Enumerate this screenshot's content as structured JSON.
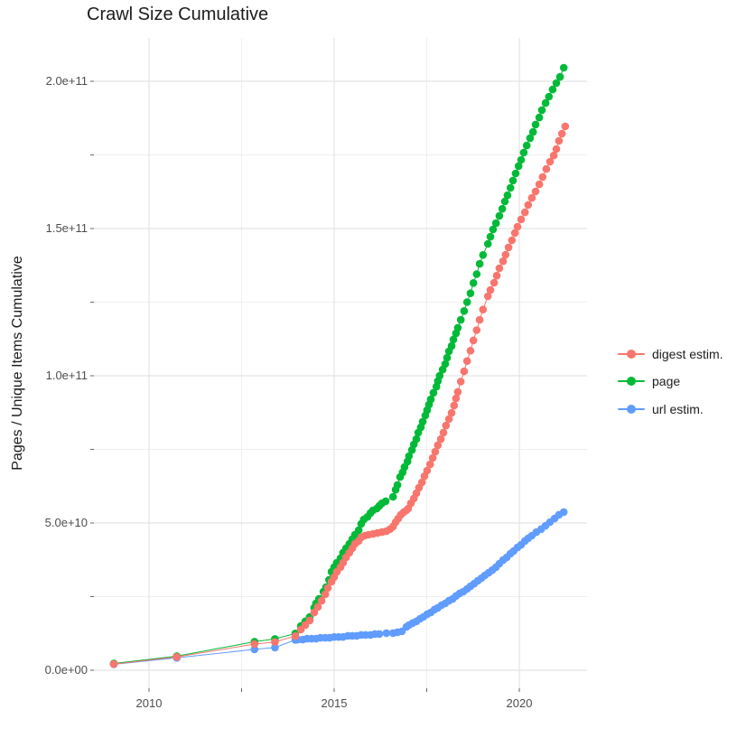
{
  "title": "Crawl Size Cumulative",
  "axes": {
    "y_title": "Pages / Unique Items Cumulative",
    "y_ticks": [
      "2.0e+11",
      "1.5e+11",
      "1.0e+11",
      "5.0e+10",
      "0.0e+00"
    ],
    "x_ticks": [
      "2010",
      "2015",
      "2020"
    ]
  },
  "legend": {
    "items": [
      {
        "label": "digest estim.",
        "color": "#F8766D"
      },
      {
        "label": "page",
        "color": "#00BA38"
      },
      {
        "label": "url estim.",
        "color": "#619CFF"
      }
    ]
  },
  "chart_data": {
    "type": "line",
    "title": "Crawl Size Cumulative",
    "xlabel": "",
    "ylabel": "Pages / Unique Items Cumulative",
    "value_unit": "billions of items (1e9)",
    "grid": "on",
    "legend_position": "right",
    "x_axis": {
      "ticks": [
        2010,
        2015,
        2020
      ],
      "minor_ticks": [
        2012.5,
        2017.5
      ],
      "range": [
        2008.5,
        2021.85
      ]
    },
    "y_axis": {
      "tick_labels": [
        "0.0e+00",
        "5.0e+10",
        "1.0e+11",
        "1.5e+11",
        "2.0e+11"
      ],
      "tick_values_billions": [
        0,
        50,
        100,
        150,
        200
      ],
      "minor_values_billions": [
        25,
        75,
        125,
        175
      ],
      "range_billions": [
        -6,
        215
      ]
    },
    "series": [
      {
        "name": "digest estim.",
        "color": "#F8766D",
        "points": [
          [
            2009.05,
            2.1
          ],
          [
            2010.75,
            4.5
          ],
          [
            2012.85,
            8.9
          ],
          [
            2013.4,
            9.6
          ],
          [
            2013.95,
            11.6
          ],
          [
            2014.1,
            13.8
          ],
          [
            2014.22,
            15.3
          ],
          [
            2014.34,
            16.9
          ],
          [
            2014.46,
            19.6
          ],
          [
            2014.56,
            21.5
          ],
          [
            2014.66,
            23.6
          ],
          [
            2014.76,
            25.8
          ],
          [
            2014.83,
            27.9
          ],
          [
            2014.93,
            30.1
          ],
          [
            2015.0,
            31.6
          ],
          [
            2015.07,
            33.4
          ],
          [
            2015.17,
            35.0
          ],
          [
            2015.24,
            36.5
          ],
          [
            2015.32,
            38.3
          ],
          [
            2015.41,
            39.9
          ],
          [
            2015.49,
            41.4
          ],
          [
            2015.56,
            42.9
          ],
          [
            2015.66,
            43.9
          ],
          [
            2015.73,
            45.1
          ],
          [
            2015.83,
            45.7
          ],
          [
            2015.93,
            46.0
          ],
          [
            2016.05,
            46.3
          ],
          [
            2016.17,
            46.6
          ],
          [
            2016.29,
            46.9
          ],
          [
            2016.41,
            47.2
          ],
          [
            2016.51,
            47.9
          ],
          [
            2016.59,
            48.8
          ],
          [
            2016.66,
            50.3
          ],
          [
            2016.73,
            51.5
          ],
          [
            2016.8,
            52.8
          ],
          [
            2016.88,
            53.7
          ],
          [
            2016.95,
            54.3
          ],
          [
            2017.0,
            54.9
          ],
          [
            2017.07,
            56.7
          ],
          [
            2017.15,
            58.3
          ],
          [
            2017.22,
            60.1
          ],
          [
            2017.29,
            62.0
          ],
          [
            2017.37,
            63.8
          ],
          [
            2017.44,
            65.9
          ],
          [
            2017.51,
            67.8
          ],
          [
            2017.59,
            69.9
          ],
          [
            2017.66,
            72.1
          ],
          [
            2017.73,
            74.2
          ],
          [
            2017.8,
            76.4
          ],
          [
            2017.88,
            78.5
          ],
          [
            2017.95,
            80.7
          ],
          [
            2018.02,
            83.1
          ],
          [
            2018.1,
            85.3
          ],
          [
            2018.17,
            87.4
          ],
          [
            2018.24,
            89.9
          ],
          [
            2018.29,
            92.3
          ],
          [
            2018.34,
            94.5
          ],
          [
            2018.42,
            98.0
          ],
          [
            2018.51,
            101.5
          ],
          [
            2018.59,
            105.0
          ],
          [
            2018.68,
            108.5
          ],
          [
            2018.76,
            112.0
          ],
          [
            2018.85,
            115.5
          ],
          [
            2018.93,
            119.0
          ],
          [
            2019.02,
            122.5
          ],
          [
            2019.15,
            127.0
          ],
          [
            2019.22,
            129.1
          ],
          [
            2019.32,
            131.6
          ],
          [
            2019.39,
            134.0
          ],
          [
            2019.46,
            136.5
          ],
          [
            2019.56,
            138.9
          ],
          [
            2019.63,
            141.1
          ],
          [
            2019.71,
            143.6
          ],
          [
            2019.8,
            146.0
          ],
          [
            2019.88,
            148.5
          ],
          [
            2019.95,
            150.6
          ],
          [
            2020.05,
            153.1
          ],
          [
            2020.15,
            155.5
          ],
          [
            2020.24,
            158.0
          ],
          [
            2020.34,
            160.4
          ],
          [
            2020.44,
            162.6
          ],
          [
            2020.54,
            165.0
          ],
          [
            2020.63,
            167.5
          ],
          [
            2020.73,
            170.2
          ],
          [
            2020.83,
            172.7
          ],
          [
            2020.93,
            174.8
          ],
          [
            2021.0,
            177.0
          ],
          [
            2021.07,
            179.8
          ],
          [
            2021.15,
            182.2
          ],
          [
            2021.24,
            184.7
          ]
        ]
      },
      {
        "name": "page",
        "color": "#00BA38",
        "points": [
          [
            2009.05,
            2.3
          ],
          [
            2010.75,
            4.8
          ],
          [
            2012.85,
            9.7
          ],
          [
            2013.4,
            10.6
          ],
          [
            2013.95,
            12.5
          ],
          [
            2014.1,
            15.0
          ],
          [
            2014.22,
            16.6
          ],
          [
            2014.34,
            18.1
          ],
          [
            2014.46,
            21.2
          ],
          [
            2014.51,
            22.7
          ],
          [
            2014.59,
            24.2
          ],
          [
            2014.71,
            26.7
          ],
          [
            2014.78,
            28.2
          ],
          [
            2014.86,
            30.7
          ],
          [
            2014.93,
            33.4
          ],
          [
            2015.0,
            35.0
          ],
          [
            2015.07,
            36.5
          ],
          [
            2015.17,
            38.0
          ],
          [
            2015.24,
            39.9
          ],
          [
            2015.32,
            41.4
          ],
          [
            2015.41,
            42.9
          ],
          [
            2015.49,
            44.5
          ],
          [
            2015.56,
            46.0
          ],
          [
            2015.66,
            47.5
          ],
          [
            2015.73,
            49.7
          ],
          [
            2015.8,
            51.2
          ],
          [
            2015.9,
            52.1
          ],
          [
            2015.98,
            53.4
          ],
          [
            2016.05,
            54.3
          ],
          [
            2016.15,
            54.9
          ],
          [
            2016.22,
            55.8
          ],
          [
            2016.29,
            56.7
          ],
          [
            2016.39,
            57.4
          ],
          [
            2016.59,
            58.9
          ],
          [
            2016.66,
            61.3
          ],
          [
            2016.71,
            62.9
          ],
          [
            2016.78,
            65.6
          ],
          [
            2016.85,
            67.2
          ],
          [
            2016.9,
            69.0
          ],
          [
            2016.98,
            70.9
          ],
          [
            2017.02,
            72.7
          ],
          [
            2017.1,
            74.8
          ],
          [
            2017.15,
            76.7
          ],
          [
            2017.22,
            78.5
          ],
          [
            2017.27,
            80.7
          ],
          [
            2017.34,
            82.5
          ],
          [
            2017.39,
            84.4
          ],
          [
            2017.46,
            86.5
          ],
          [
            2017.51,
            88.3
          ],
          [
            2017.56,
            90.2
          ],
          [
            2017.61,
            92.0
          ],
          [
            2017.68,
            94.2
          ],
          [
            2017.76,
            96.3
          ],
          [
            2017.8,
            98.2
          ],
          [
            2017.85,
            100.0
          ],
          [
            2017.93,
            102.1
          ],
          [
            2018.0,
            104.0
          ],
          [
            2018.05,
            106.1
          ],
          [
            2018.1,
            108.3
          ],
          [
            2018.17,
            110.1
          ],
          [
            2018.22,
            112.3
          ],
          [
            2018.29,
            114.4
          ],
          [
            2018.34,
            116.3
          ],
          [
            2018.42,
            119.0
          ],
          [
            2018.51,
            122.0
          ],
          [
            2018.59,
            125.0
          ],
          [
            2018.68,
            128.0
          ],
          [
            2018.76,
            131.5
          ],
          [
            2018.85,
            134.5
          ],
          [
            2018.93,
            138.0
          ],
          [
            2019.02,
            141.0
          ],
          [
            2019.15,
            144.8
          ],
          [
            2019.22,
            147.2
          ],
          [
            2019.29,
            149.7
          ],
          [
            2019.37,
            151.8
          ],
          [
            2019.46,
            154.3
          ],
          [
            2019.54,
            156.7
          ],
          [
            2019.61,
            159.2
          ],
          [
            2019.68,
            161.3
          ],
          [
            2019.76,
            163.8
          ],
          [
            2019.83,
            166.3
          ],
          [
            2019.9,
            168.7
          ],
          [
            2019.98,
            171.2
          ],
          [
            2020.05,
            173.3
          ],
          [
            2020.12,
            175.8
          ],
          [
            2020.2,
            178.2
          ],
          [
            2020.29,
            180.7
          ],
          [
            2020.37,
            182.8
          ],
          [
            2020.44,
            185.3
          ],
          [
            2020.54,
            187.7
          ],
          [
            2020.61,
            190.2
          ],
          [
            2020.71,
            192.6
          ],
          [
            2020.8,
            194.8
          ],
          [
            2020.9,
            197.2
          ],
          [
            2021.0,
            199.4
          ],
          [
            2021.1,
            201.5
          ],
          [
            2021.2,
            204.6
          ]
        ]
      },
      {
        "name": "url estim.",
        "color": "#619CFF",
        "points": [
          [
            2009.05,
            2.0
          ],
          [
            2010.75,
            4.2
          ],
          [
            2012.85,
            7.1
          ],
          [
            2013.4,
            7.7
          ],
          [
            2013.95,
            10.3
          ],
          [
            2014.02,
            10.4
          ],
          [
            2014.15,
            10.4
          ],
          [
            2014.27,
            10.7
          ],
          [
            2014.39,
            10.7
          ],
          [
            2014.51,
            10.7
          ],
          [
            2014.63,
            11.0
          ],
          [
            2014.76,
            11.0
          ],
          [
            2014.88,
            11.0
          ],
          [
            2015.0,
            11.3
          ],
          [
            2015.12,
            11.3
          ],
          [
            2015.24,
            11.3
          ],
          [
            2015.37,
            11.7
          ],
          [
            2015.49,
            11.7
          ],
          [
            2015.61,
            11.7
          ],
          [
            2015.73,
            12.0
          ],
          [
            2015.85,
            12.0
          ],
          [
            2015.98,
            12.0
          ],
          [
            2016.1,
            12.3
          ],
          [
            2016.22,
            12.3
          ],
          [
            2016.41,
            12.6
          ],
          [
            2016.59,
            12.6
          ],
          [
            2016.71,
            12.9
          ],
          [
            2016.83,
            13.2
          ],
          [
            2016.95,
            14.7
          ],
          [
            2017.02,
            15.3
          ],
          [
            2017.12,
            16.0
          ],
          [
            2017.22,
            16.6
          ],
          [
            2017.32,
            17.5
          ],
          [
            2017.41,
            18.1
          ],
          [
            2017.51,
            19.0
          ],
          [
            2017.61,
            19.6
          ],
          [
            2017.71,
            20.6
          ],
          [
            2017.8,
            21.2
          ],
          [
            2017.9,
            22.1
          ],
          [
            2018.0,
            22.7
          ],
          [
            2018.1,
            23.6
          ],
          [
            2018.2,
            24.2
          ],
          [
            2018.29,
            25.2
          ],
          [
            2018.39,
            26.1
          ],
          [
            2018.49,
            26.7
          ],
          [
            2018.59,
            27.6
          ],
          [
            2018.68,
            28.5
          ],
          [
            2018.78,
            29.4
          ],
          [
            2018.88,
            30.4
          ],
          [
            2018.98,
            31.3
          ],
          [
            2019.07,
            32.2
          ],
          [
            2019.17,
            33.1
          ],
          [
            2019.27,
            34.0
          ],
          [
            2019.37,
            35.0
          ],
          [
            2019.46,
            36.2
          ],
          [
            2019.56,
            37.4
          ],
          [
            2019.66,
            38.3
          ],
          [
            2019.76,
            39.6
          ],
          [
            2019.85,
            40.5
          ],
          [
            2019.95,
            41.7
          ],
          [
            2020.05,
            42.6
          ],
          [
            2020.15,
            43.9
          ],
          [
            2020.24,
            44.8
          ],
          [
            2020.34,
            45.7
          ],
          [
            2020.46,
            46.9
          ],
          [
            2020.59,
            47.9
          ],
          [
            2020.71,
            49.1
          ],
          [
            2020.83,
            50.3
          ],
          [
            2020.95,
            51.5
          ],
          [
            2021.07,
            52.8
          ],
          [
            2021.2,
            53.7
          ]
        ]
      }
    ]
  }
}
